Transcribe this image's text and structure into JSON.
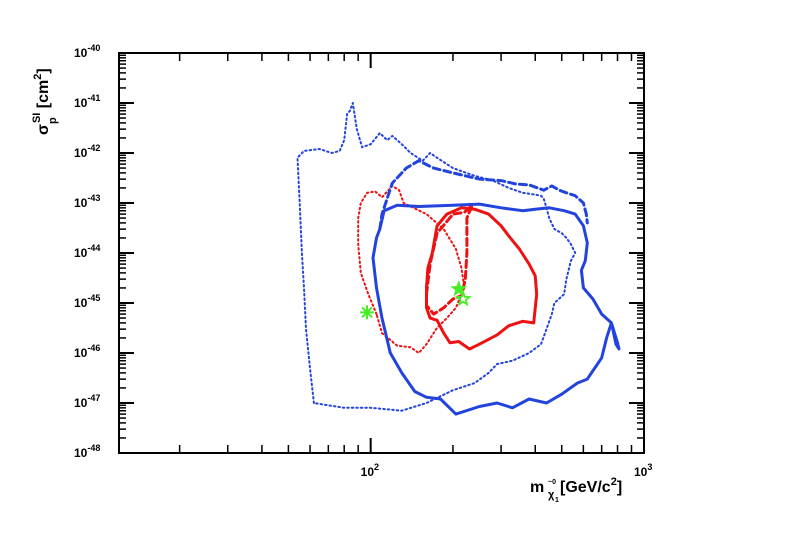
{
  "chart_data": {
    "type": "line",
    "title": "",
    "x_scale": "log",
    "y_scale": "log",
    "xlim": [
      12,
      1000
    ],
    "ylim": [
      1e-48,
      1e-40
    ],
    "grid": false,
    "legend": "none",
    "x_ticks": [
      {
        "value": 100,
        "base": "10",
        "exp": "2"
      },
      {
        "value": 1000,
        "base": "10",
        "exp": "3"
      }
    ],
    "y_ticks": [
      {
        "value": 1e-48,
        "base": "10",
        "exp": "-48"
      },
      {
        "value": 1e-47,
        "base": "10",
        "exp": "-47"
      },
      {
        "value": 1e-46,
        "base": "10",
        "exp": "-46"
      },
      {
        "value": 1e-45,
        "base": "10",
        "exp": "-45"
      },
      {
        "value": 1e-44,
        "base": "10",
        "exp": "-44"
      },
      {
        "value": 1e-43,
        "base": "10",
        "exp": "-43"
      },
      {
        "value": 1e-42,
        "base": "10",
        "exp": "-42"
      },
      {
        "value": 1e-41,
        "base": "10",
        "exp": "-41"
      },
      {
        "value": 1e-40,
        "base": "10",
        "exp": "-40"
      }
    ],
    "xlabel": {
      "m": "m",
      "sub": "χ",
      "subsub": "1",
      "sup": "~0",
      "unit": " [GeV/c",
      "unit_exp": "2",
      "unit_end": "]"
    },
    "ylabel": {
      "sigma": "σ",
      "sub": "p",
      "sup": "SI",
      "unit": " [cm",
      "unit_exp": "2",
      "unit_end": "]"
    },
    "colors": {
      "red": "#ee1111",
      "blue": "#2244dd",
      "marker": "#44ee22"
    },
    "series": [
      {
        "color": "red",
        "style": "solid",
        "width": 3,
        "points": [
          [
            168,
            1e-44
          ],
          [
            175,
            3.5e-44
          ],
          [
            190,
            6e-44
          ],
          [
            215,
            8e-44
          ],
          [
            240,
            7.5e-44
          ],
          [
            270,
            6e-44
          ],
          [
            300,
            3.5e-44
          ],
          [
            320,
            2.2e-44
          ],
          [
            350,
            1.2e-44
          ],
          [
            380,
            6e-45
          ],
          [
            400,
            3.5e-45
          ],
          [
            405,
            1.5e-45
          ],
          [
            395,
            4e-46
          ],
          [
            360,
            4.3e-46
          ],
          [
            320,
            3.5e-46
          ],
          [
            290,
            2.3e-46
          ],
          [
            250,
            1.5e-46
          ],
          [
            230,
            1.2e-46
          ],
          [
            210,
            1.7e-46
          ],
          [
            195,
            1.6e-46
          ],
          [
            185,
            2.5e-46
          ],
          [
            175,
            4.5e-46
          ],
          [
            165,
            5e-46
          ],
          [
            160,
            8e-46
          ],
          [
            160,
            2e-45
          ],
          [
            162,
            5e-45
          ],
          [
            168,
            1e-44
          ]
        ]
      },
      {
        "color": "red",
        "style": "dashed",
        "width": 3,
        "points": [
          [
            160,
            1.5e-45
          ],
          [
            165,
            6e-45
          ],
          [
            175,
            2.5e-44
          ],
          [
            200,
            6e-44
          ],
          [
            220,
            6.5e-44
          ],
          [
            235,
            9e-44
          ],
          [
            225,
            5e-44
          ],
          [
            225,
            1e-44
          ],
          [
            222,
            3e-45
          ],
          [
            215,
            1.4e-45
          ],
          [
            200,
            1.2e-45
          ],
          [
            185,
            8e-46
          ],
          [
            170,
            6e-46
          ],
          [
            160,
            9e-46
          ],
          [
            160,
            1.5e-45
          ]
        ]
      },
      {
        "color": "red",
        "style": "dotted",
        "width": 2,
        "points": [
          [
            105,
            6e-46
          ],
          [
            98,
            1.5e-45
          ],
          [
            92,
            4e-45
          ],
          [
            90,
            1.5e-44
          ],
          [
            90,
            5e-44
          ],
          [
            92,
            1e-43
          ],
          [
            97,
            1.6e-43
          ],
          [
            104,
            1.7e-43
          ],
          [
            110,
            1.3e-43
          ],
          [
            120,
            2.2e-43
          ],
          [
            127,
            1.8e-43
          ],
          [
            132,
            1e-43
          ],
          [
            160,
            6e-44
          ],
          [
            185,
            3e-44
          ],
          [
            205,
            1.2e-44
          ],
          [
            215,
            5e-45
          ],
          [
            220,
            2e-45
          ],
          [
            205,
            8e-46
          ],
          [
            190,
            5e-46
          ],
          [
            175,
            3.2e-46
          ],
          [
            160,
            1.5e-46
          ],
          [
            150,
            1e-46
          ],
          [
            140,
            1.3e-46
          ],
          [
            125,
            1.4e-46
          ],
          [
            110,
            2.5e-46
          ],
          [
            105,
            6e-46
          ]
        ]
      },
      {
        "color": "blue",
        "style": "solid",
        "width": 3,
        "points": [
          [
            108,
            3e-44
          ],
          [
            112,
            7e-44
          ],
          [
            125,
            9e-44
          ],
          [
            150,
            8.5e-44
          ],
          [
            200,
            9e-44
          ],
          [
            250,
            9.5e-44
          ],
          [
            300,
            8e-44
          ],
          [
            360,
            7e-44
          ],
          [
            400,
            7.5e-44
          ],
          [
            450,
            8e-44
          ],
          [
            510,
            7e-44
          ],
          [
            560,
            6e-44
          ],
          [
            600,
            3.5e-44
          ],
          [
            620,
            1.6e-44
          ],
          [
            610,
            7e-45
          ],
          [
            590,
            4.5e-45
          ],
          [
            600,
            2e-45
          ],
          [
            650,
            1.2e-45
          ],
          [
            700,
            6e-46
          ],
          [
            760,
            4e-46
          ],
          [
            790,
            1.5e-46
          ],
          [
            810,
            1.2e-46
          ],
          [
            800,
            1.6e-46
          ],
          [
            760,
            4e-46
          ],
          [
            730,
            2e-46
          ],
          [
            700,
            8e-47
          ],
          [
            660,
            5e-47
          ],
          [
            620,
            3e-47
          ],
          [
            570,
            2.5e-47
          ],
          [
            500,
            1.5e-47
          ],
          [
            440,
            1e-47
          ],
          [
            380,
            1.2e-47
          ],
          [
            330,
            8e-48
          ],
          [
            290,
            1e-47
          ],
          [
            250,
            8.5e-48
          ],
          [
            205,
            6e-48
          ],
          [
            180,
            1.2e-47
          ],
          [
            160,
            1.3e-47
          ],
          [
            145,
            1.7e-47
          ],
          [
            130,
            4e-47
          ],
          [
            118,
            1e-46
          ],
          [
            110,
            5e-46
          ],
          [
            105,
            2e-45
          ],
          [
            102,
            8e-45
          ],
          [
            105,
            2e-44
          ],
          [
            108,
            3e-44
          ]
        ]
      },
      {
        "color": "blue",
        "style": "dashed",
        "width": 3,
        "points": [
          [
            108,
            3e-44
          ],
          [
            110,
            6e-44
          ],
          [
            120,
            2.5e-43
          ],
          [
            135,
            5e-43
          ],
          [
            150,
            7e-43
          ],
          [
            170,
            5e-43
          ],
          [
            200,
            4e-43
          ],
          [
            250,
            3e-43
          ],
          [
            300,
            2.8e-43
          ],
          [
            340,
            2.4e-43
          ],
          [
            380,
            2.3e-43
          ],
          [
            430,
            1.8e-43
          ],
          [
            460,
            2.2e-43
          ],
          [
            490,
            1.8e-43
          ],
          [
            520,
            1.6e-43
          ],
          [
            560,
            1.4e-43
          ],
          [
            600,
            1e-43
          ],
          [
            615,
            6e-44
          ],
          [
            620,
            4e-44
          ]
        ]
      },
      {
        "color": "blue",
        "style": "dotted",
        "width": 2,
        "points": [
          [
            62,
            1e-47
          ],
          [
            60,
            5e-47
          ],
          [
            58,
            3e-46
          ],
          [
            57,
            2e-45
          ],
          [
            56,
            1e-44
          ],
          [
            55,
            1e-43
          ],
          [
            54,
            8e-43
          ],
          [
            57,
            1.1e-42
          ],
          [
            65,
            1.2e-42
          ],
          [
            72,
            1e-42
          ],
          [
            77,
            1.1e-42
          ],
          [
            80,
            1.8e-42
          ],
          [
            82,
            6e-42
          ],
          [
            84,
            7e-42
          ],
          [
            86,
            1e-41
          ],
          [
            89,
            3e-42
          ],
          [
            93,
            1.3e-42
          ],
          [
            100,
            1.5e-42
          ],
          [
            108,
            2.5e-42
          ],
          [
            115,
            1.8e-42
          ],
          [
            120,
            2.2e-42
          ],
          [
            130,
            1.5e-42
          ],
          [
            140,
            1e-42
          ],
          [
            155,
            7e-43
          ],
          [
            165,
            1e-42
          ],
          [
            175,
            8e-43
          ],
          [
            200,
            5e-43
          ],
          [
            240,
            3.5e-43
          ],
          [
            280,
            2.8e-43
          ],
          [
            320,
            2e-43
          ],
          [
            360,
            1.6e-43
          ],
          [
            390,
            1.5e-43
          ],
          [
            420,
            1.4e-43
          ],
          [
            430,
            1.2e-43
          ],
          [
            440,
            8e-44
          ],
          [
            450,
            5e-44
          ],
          [
            470,
            3e-44
          ],
          [
            500,
            2.5e-44
          ],
          [
            520,
            2e-44
          ],
          [
            540,
            1.5e-44
          ],
          [
            560,
            1e-44
          ],
          [
            540,
            7e-45
          ],
          [
            520,
            3e-45
          ],
          [
            510,
            1.5e-45
          ],
          [
            470,
            1e-45
          ],
          [
            460,
            6e-46
          ],
          [
            440,
            3e-46
          ],
          [
            420,
            1.5e-46
          ],
          [
            380,
            1e-46
          ],
          [
            330,
            7e-47
          ],
          [
            290,
            6e-47
          ],
          [
            270,
            4e-47
          ],
          [
            240,
            2.5e-47
          ],
          [
            200,
            1.8e-47
          ],
          [
            160,
            1e-47
          ],
          [
            130,
            7e-48
          ],
          [
            100,
            8e-48
          ],
          [
            80,
            8e-48
          ],
          [
            70,
            9e-48
          ],
          [
            62,
            1e-47
          ]
        ]
      }
    ],
    "markers": [
      {
        "x": 97,
        "y": 6.5e-46,
        "shape": "asterisk",
        "size": 14
      },
      {
        "x": 210,
        "y": 1.9e-45,
        "shape": "star",
        "size": 15
      },
      {
        "x": 218,
        "y": 1.2e-45,
        "shape": "star-open",
        "size": 13
      }
    ]
  }
}
